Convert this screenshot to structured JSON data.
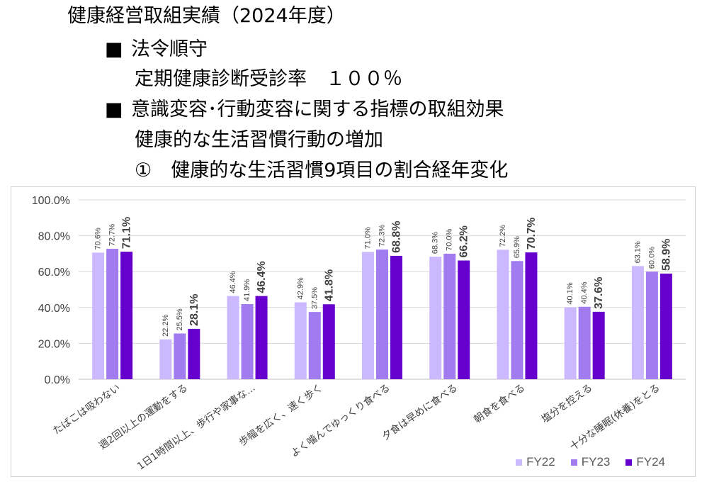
{
  "header": {
    "title": "健康経営取組実績（2024年度）",
    "section1_bullet": "■",
    "section1_title": "法令順守",
    "section1_item": "定期健康診断受診率　１００％",
    "section2_bullet": "■",
    "section2_title": "意識変容･行動変容に関する指標の取組効果",
    "section2_sub": "健康的な生活習慣行動の増加",
    "section2_chart_title": "①　健康的な生活習慣9項目の割合経年変化"
  },
  "colors": {
    "FY22": "#ccb8ff",
    "FY23": "#a07cf0",
    "FY24": "#6600cc"
  },
  "chart_data": {
    "type": "bar",
    "categories": [
      "たばこは吸わない",
      "週2回以上の運動をする",
      "1日1時間以上、歩行や家事な...",
      "歩幅を広く、速く歩く",
      "よく噛んでゆっくり食べる",
      "夕食は早めに食べる",
      "朝食を食べる",
      "塩分を控える",
      "十分な睡眠(休養)をとる"
    ],
    "series": [
      {
        "name": "FY22",
        "values": [
          70.6,
          22.2,
          46.4,
          42.9,
          71.0,
          68.3,
          72.2,
          40.1,
          63.1
        ],
        "labels": [
          "70.6%",
          "22.2%",
          "46.4%",
          "42.9%",
          "71.0%",
          "68.3%",
          "72.2%",
          "40.1%",
          "63.1%"
        ]
      },
      {
        "name": "FY23",
        "values": [
          72.7,
          25.5,
          41.9,
          37.5,
          72.3,
          70.0,
          65.9,
          40.4,
          60.0
        ],
        "labels": [
          "72.7%",
          "25.5%",
          "41.9%",
          "37.5%",
          "72.3%",
          "70.0%",
          "65.9%",
          "40.4%",
          "60.0%"
        ]
      },
      {
        "name": "FY24",
        "values": [
          71.1,
          28.1,
          46.4,
          41.8,
          68.8,
          66.2,
          70.7,
          37.6,
          58.9
        ],
        "labels": [
          "71.1%",
          "28.1%",
          "46.4%",
          "41.8%",
          "68.8%",
          "66.2%",
          "70.7%",
          "37.6%",
          "58.9%"
        ]
      }
    ],
    "ylim": [
      0,
      100
    ],
    "yticks": [
      0,
      20,
      40,
      60,
      80,
      100
    ],
    "ytick_labels": [
      "0.0%",
      "20.0%",
      "40.0%",
      "60.0%",
      "80.0%",
      "100.0%"
    ],
    "grid": true,
    "legend": "bottom-right"
  }
}
